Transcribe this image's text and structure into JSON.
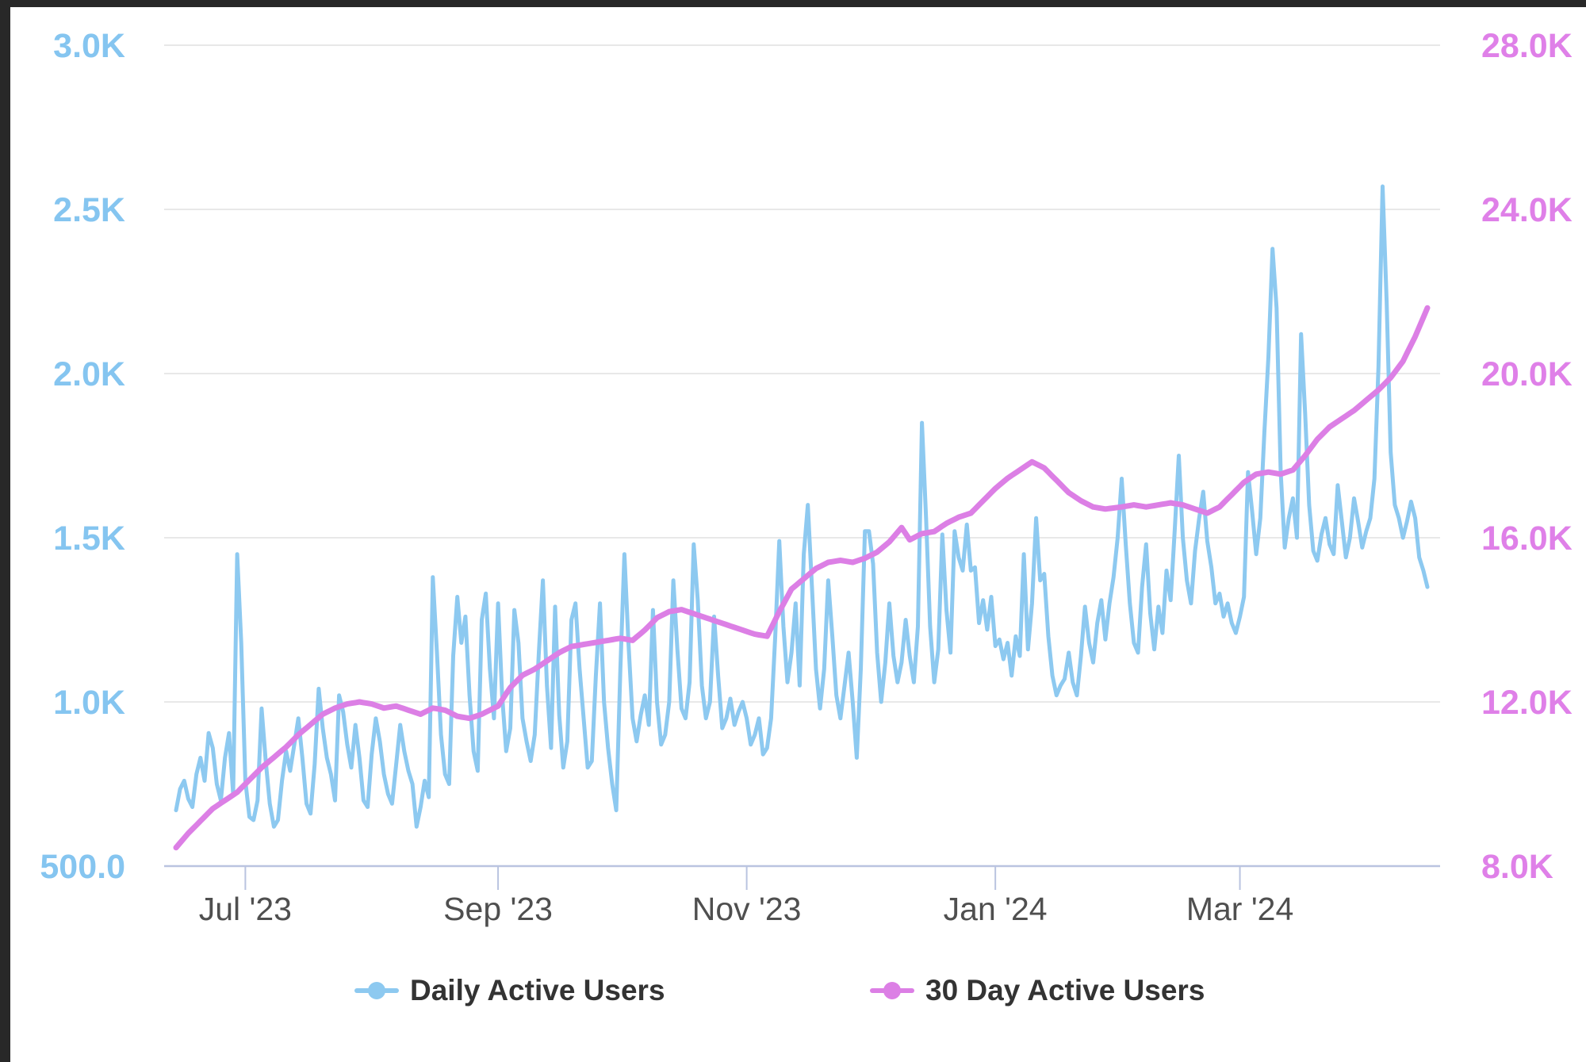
{
  "chart_data": {
    "type": "line",
    "title": "",
    "xlabel": "",
    "ylabel_left": "",
    "ylabel_right": "",
    "grid": "horizontal-only",
    "legend_position": "bottom",
    "x_axis": {
      "tick_labels": [
        "Jul '23",
        "Sep '23",
        "Nov '23",
        "Jan '24",
        "Mar '24"
      ],
      "tick_day_indices": [
        17,
        79,
        140,
        201,
        261
      ],
      "total_days": 308
    },
    "y_axis_left": {
      "tick_labels": [
        "3.0K",
        "2.5K",
        "2.0K",
        "1.5K",
        "1.0K",
        "500.0"
      ],
      "tick_values": [
        3000,
        2500,
        2000,
        1500,
        1000,
        500
      ],
      "range": [
        500,
        3000
      ],
      "label_color": "#85c5f0"
    },
    "y_axis_right": {
      "tick_labels": [
        "28.0K",
        "24.0K",
        "20.0K",
        "16.0K",
        "12.0K",
        "8.0K"
      ],
      "tick_values": [
        28000,
        24000,
        20000,
        16000,
        12000,
        8000
      ],
      "range": [
        8000,
        28000
      ],
      "label_color": "#df80e8"
    },
    "series": [
      {
        "name": "Daily Active Users",
        "color": "#8dc9f0",
        "axis": "left",
        "daily_values": [
          670,
          735,
          760,
          705,
          680,
          780,
          830,
          760,
          905,
          860,
          750,
          700,
          830,
          905,
          720,
          1450,
          1180,
          760,
          650,
          640,
          700,
          980,
          820,
          690,
          620,
          640,
          760,
          850,
          790,
          870,
          950,
          830,
          690,
          660,
          810,
          1040,
          920,
          830,
          780,
          700,
          1020,
          970,
          870,
          800,
          930,
          830,
          700,
          680,
          840,
          950,
          880,
          780,
          720,
          690,
          810,
          930,
          850,
          790,
          750,
          620,
          680,
          760,
          710,
          1380,
          1150,
          900,
          780,
          750,
          1140,
          1320,
          1180,
          1260,
          1020,
          850,
          790,
          1250,
          1330,
          1100,
          950,
          1300,
          1020,
          850,
          920,
          1280,
          1180,
          950,
          880,
          820,
          900,
          1150,
          1370,
          1050,
          860,
          1290,
          960,
          800,
          880,
          1250,
          1300,
          1100,
          950,
          800,
          820,
          1080,
          1300,
          1000,
          860,
          750,
          670,
          1100,
          1450,
          1180,
          950,
          880,
          960,
          1020,
          930,
          1280,
          1000,
          870,
          900,
          1000,
          1370,
          1160,
          980,
          950,
          1060,
          1480,
          1310,
          1050,
          950,
          1000,
          1260,
          1080,
          920,
          950,
          1010,
          930,
          970,
          1000,
          950,
          870,
          900,
          950,
          840,
          860,
          950,
          1200,
          1490,
          1230,
          1060,
          1150,
          1300,
          1050,
          1450,
          1600,
          1350,
          1100,
          980,
          1100,
          1370,
          1200,
          1020,
          950,
          1050,
          1150,
          1000,
          830,
          1100,
          1520,
          1520,
          1420,
          1150,
          1000,
          1120,
          1300,
          1140,
          1060,
          1120,
          1250,
          1140,
          1060,
          1230,
          1850,
          1560,
          1230,
          1060,
          1160,
          1510,
          1280,
          1150,
          1520,
          1440,
          1400,
          1540,
          1400,
          1410,
          1240,
          1310,
          1220,
          1320,
          1170,
          1190,
          1130,
          1180,
          1080,
          1200,
          1140,
          1450,
          1160,
          1300,
          1560,
          1370,
          1390,
          1200,
          1080,
          1020,
          1050,
          1070,
          1150,
          1060,
          1020,
          1140,
          1290,
          1180,
          1120,
          1240,
          1310,
          1190,
          1300,
          1380,
          1500,
          1680,
          1480,
          1300,
          1180,
          1150,
          1350,
          1480,
          1270,
          1160,
          1290,
          1210,
          1400,
          1310,
          1520,
          1750,
          1500,
          1370,
          1300,
          1460,
          1560,
          1640,
          1490,
          1410,
          1300,
          1330,
          1260,
          1300,
          1240,
          1210,
          1260,
          1320,
          1700,
          1580,
          1450,
          1560,
          1820,
          2050,
          2380,
          2200,
          1700,
          1470,
          1560,
          1620,
          1500,
          2120,
          1880,
          1600,
          1460,
          1430,
          1510,
          1560,
          1480,
          1450,
          1660,
          1550,
          1440,
          1500,
          1620,
          1550,
          1470,
          1520,
          1560,
          1680,
          2020,
          2570,
          2220,
          1760,
          1600,
          1560,
          1500,
          1550,
          1610,
          1560,
          1440,
          1400,
          1350
        ]
      },
      {
        "name": "30 Day Active Users",
        "color": "#dc7fe5",
        "axis": "right",
        "anchor_points": [
          [
            0,
            8450
          ],
          [
            3,
            8800
          ],
          [
            6,
            9100
          ],
          [
            9,
            9400
          ],
          [
            12,
            9600
          ],
          [
            15,
            9800
          ],
          [
            18,
            10100
          ],
          [
            21,
            10400
          ],
          [
            24,
            10650
          ],
          [
            27,
            10900
          ],
          [
            30,
            11200
          ],
          [
            33,
            11450
          ],
          [
            36,
            11700
          ],
          [
            39,
            11850
          ],
          [
            42,
            11950
          ],
          [
            45,
            12000
          ],
          [
            48,
            11950
          ],
          [
            51,
            11850
          ],
          [
            54,
            11900
          ],
          [
            57,
            11800
          ],
          [
            60,
            11700
          ],
          [
            63,
            11850
          ],
          [
            66,
            11800
          ],
          [
            69,
            11650
          ],
          [
            72,
            11600
          ],
          [
            75,
            11700
          ],
          [
            79,
            11900
          ],
          [
            82,
            12350
          ],
          [
            85,
            12650
          ],
          [
            88,
            12800
          ],
          [
            91,
            13000
          ],
          [
            94,
            13200
          ],
          [
            97,
            13350
          ],
          [
            100,
            13400
          ],
          [
            103,
            13450
          ],
          [
            106,
            13500
          ],
          [
            109,
            13550
          ],
          [
            112,
            13500
          ],
          [
            115,
            13750
          ],
          [
            118,
            14050
          ],
          [
            121,
            14200
          ],
          [
            124,
            14250
          ],
          [
            127,
            14150
          ],
          [
            130,
            14050
          ],
          [
            133,
            13950
          ],
          [
            136,
            13850
          ],
          [
            139,
            13750
          ],
          [
            142,
            13650
          ],
          [
            145,
            13600
          ],
          [
            148,
            14200
          ],
          [
            151,
            14750
          ],
          [
            154,
            15000
          ],
          [
            157,
            15250
          ],
          [
            160,
            15400
          ],
          [
            163,
            15450
          ],
          [
            166,
            15400
          ],
          [
            169,
            15500
          ],
          [
            172,
            15650
          ],
          [
            175,
            15900
          ],
          [
            178,
            16250
          ],
          [
            180,
            15950
          ],
          [
            183,
            16100
          ],
          [
            186,
            16150
          ],
          [
            189,
            16350
          ],
          [
            192,
            16500
          ],
          [
            195,
            16600
          ],
          [
            198,
            16900
          ],
          [
            201,
            17200
          ],
          [
            204,
            17450
          ],
          [
            207,
            17650
          ],
          [
            210,
            17850
          ],
          [
            213,
            17700
          ],
          [
            216,
            17400
          ],
          [
            219,
            17100
          ],
          [
            222,
            16900
          ],
          [
            225,
            16750
          ],
          [
            228,
            16700
          ],
          [
            232,
            16750
          ],
          [
            235,
            16800
          ],
          [
            238,
            16750
          ],
          [
            241,
            16800
          ],
          [
            244,
            16850
          ],
          [
            247,
            16800
          ],
          [
            250,
            16700
          ],
          [
            253,
            16600
          ],
          [
            256,
            16750
          ],
          [
            259,
            17050
          ],
          [
            262,
            17350
          ],
          [
            265,
            17550
          ],
          [
            268,
            17600
          ],
          [
            271,
            17550
          ],
          [
            274,
            17650
          ],
          [
            277,
            18000
          ],
          [
            280,
            18400
          ],
          [
            283,
            18700
          ],
          [
            286,
            18900
          ],
          [
            289,
            19100
          ],
          [
            292,
            19350
          ],
          [
            295,
            19600
          ],
          [
            298,
            19900
          ],
          [
            301,
            20300
          ],
          [
            304,
            20900
          ],
          [
            307,
            21600
          ]
        ]
      }
    ],
    "style": {
      "grid_color": "#e8e8e8",
      "axis_line_color": "#bac4e0",
      "month_label_color": "#4f4f4f"
    }
  },
  "legend": {
    "items": [
      {
        "label": "Daily Active Users",
        "color": "#8dc9f0"
      },
      {
        "label": "30 Day Active Users",
        "color": "#dc7fe5"
      }
    ]
  }
}
